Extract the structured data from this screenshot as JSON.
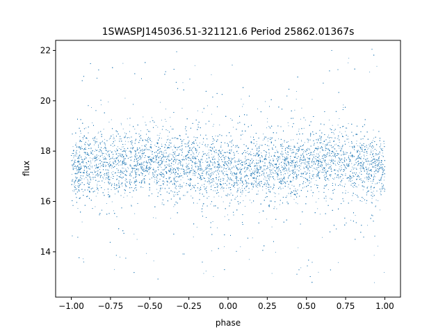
{
  "chart_data": {
    "type": "scatter",
    "title": "1SWASPJ145036.51-321121.6 Period 25862.01367s",
    "xlabel": "phase",
    "ylabel": "flux",
    "xlim": [
      -1.1,
      1.1
    ],
    "ylim": [
      12.2,
      22.4
    ],
    "xticks": [
      -1.0,
      -0.75,
      -0.5,
      -0.25,
      0.0,
      0.25,
      0.5,
      0.75,
      1.0
    ],
    "xtick_labels": [
      "−1.00",
      "−0.75",
      "−0.50",
      "−0.25",
      "0.00",
      "0.25",
      "0.50",
      "0.75",
      "1.00"
    ],
    "yticks": [
      14,
      16,
      18,
      20,
      22
    ],
    "ytick_labels": [
      "14",
      "16",
      "18",
      "20",
      "22"
    ],
    "grid": false,
    "marker_color": "#1f77b4",
    "series": [
      {
        "x_range": [
          -1.0,
          1.0
        ],
        "y_range": [
          12.7,
          22.1
        ],
        "approx_median_flux": 17.3,
        "values": [
          [
            -1.0,
            17.3
          ],
          [
            -0.9,
            17.5
          ],
          [
            -0.8,
            17.4
          ],
          [
            -0.7,
            17.6
          ],
          [
            -0.6,
            17.5
          ],
          [
            -0.5,
            17.6
          ],
          [
            -0.4,
            17.5
          ],
          [
            -0.3,
            17.5
          ],
          [
            -0.2,
            17.4
          ],
          [
            -0.1,
            17.3
          ],
          [
            0.0,
            17.2
          ],
          [
            0.1,
            17.2
          ],
          [
            0.2,
            17.3
          ],
          [
            0.3,
            17.4
          ],
          [
            0.4,
            17.5
          ],
          [
            0.5,
            17.5
          ],
          [
            0.6,
            17.6
          ],
          [
            0.7,
            17.6
          ],
          [
            0.8,
            17.5
          ],
          [
            0.9,
            17.4
          ],
          [
            1.0,
            17.3
          ]
        ]
      }
    ]
  }
}
